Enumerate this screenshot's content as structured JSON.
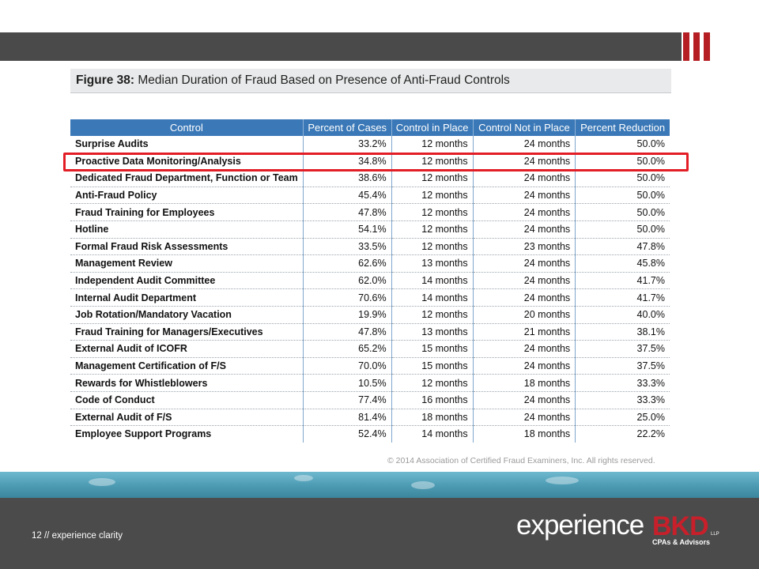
{
  "figure": {
    "label": "Figure 38:",
    "title": "Median Duration of Fraud Based on Presence of Anti-Fraud Controls"
  },
  "table": {
    "headers": [
      "Control",
      "Percent of Cases",
      "Control in Place",
      "Control Not in Place",
      "Percent Reduction"
    ],
    "rows": [
      [
        "Surprise Audits",
        "33.2%",
        "12 months",
        "24 months",
        "50.0%"
      ],
      [
        "Proactive Data Monitoring/Analysis",
        "34.8%",
        "12 months",
        "24 months",
        "50.0%"
      ],
      [
        "Dedicated Fraud Department, Function or Team",
        "38.6%",
        "12 months",
        "24 months",
        "50.0%"
      ],
      [
        "Anti-Fraud Policy",
        "45.4%",
        "12 months",
        "24 months",
        "50.0%"
      ],
      [
        "Fraud Training for Employees",
        "47.8%",
        "12 months",
        "24 months",
        "50.0%"
      ],
      [
        "Hotline",
        "54.1%",
        "12 months",
        "24 months",
        "50.0%"
      ],
      [
        "Formal Fraud Risk Assessments",
        "33.5%",
        "12 months",
        "23 months",
        "47.8%"
      ],
      [
        "Management Review",
        "62.6%",
        "13 months",
        "24 months",
        "45.8%"
      ],
      [
        "Independent Audit Committee",
        "62.0%",
        "14 months",
        "24 months",
        "41.7%"
      ],
      [
        "Internal Audit Department",
        "70.6%",
        "14 months",
        "24 months",
        "41.7%"
      ],
      [
        "Job Rotation/Mandatory Vacation",
        "19.9%",
        "12 months",
        "20 months",
        "40.0%"
      ],
      [
        "Fraud Training for Managers/Executives",
        "47.8%",
        "13 months",
        "21 months",
        "38.1%"
      ],
      [
        "External Audit of ICOFR",
        "65.2%",
        "15 months",
        "24 months",
        "37.5%"
      ],
      [
        "Management Certification of F/S",
        "70.0%",
        "15 months",
        "24 months",
        "37.5%"
      ],
      [
        "Rewards for Whistleblowers",
        "10.5%",
        "12 months",
        "18 months",
        "33.3%"
      ],
      [
        "Code of Conduct",
        "77.4%",
        "16 months",
        "24 months",
        "33.3%"
      ],
      [
        "External Audit of F/S",
        "81.4%",
        "18 months",
        "24 months",
        "25.0%"
      ],
      [
        "Employee Support Programs",
        "52.4%",
        "14 months",
        "18 months",
        "22.2%"
      ]
    ]
  },
  "copyright": "© 2014 Association of Certified Fraud Examiners, Inc. All rights reserved.",
  "footer": {
    "text": "12 // experience clarity"
  },
  "logo": {
    "word": "experience",
    "brand": "BKD",
    "suffix": "LLP",
    "tagline": "CPAs & Advisors"
  },
  "colors": {
    "header_blue": "#3a78b7",
    "highlight_red": "#e31d25",
    "brand_red": "#b51f24",
    "footer_gray": "#4b4b4b"
  }
}
